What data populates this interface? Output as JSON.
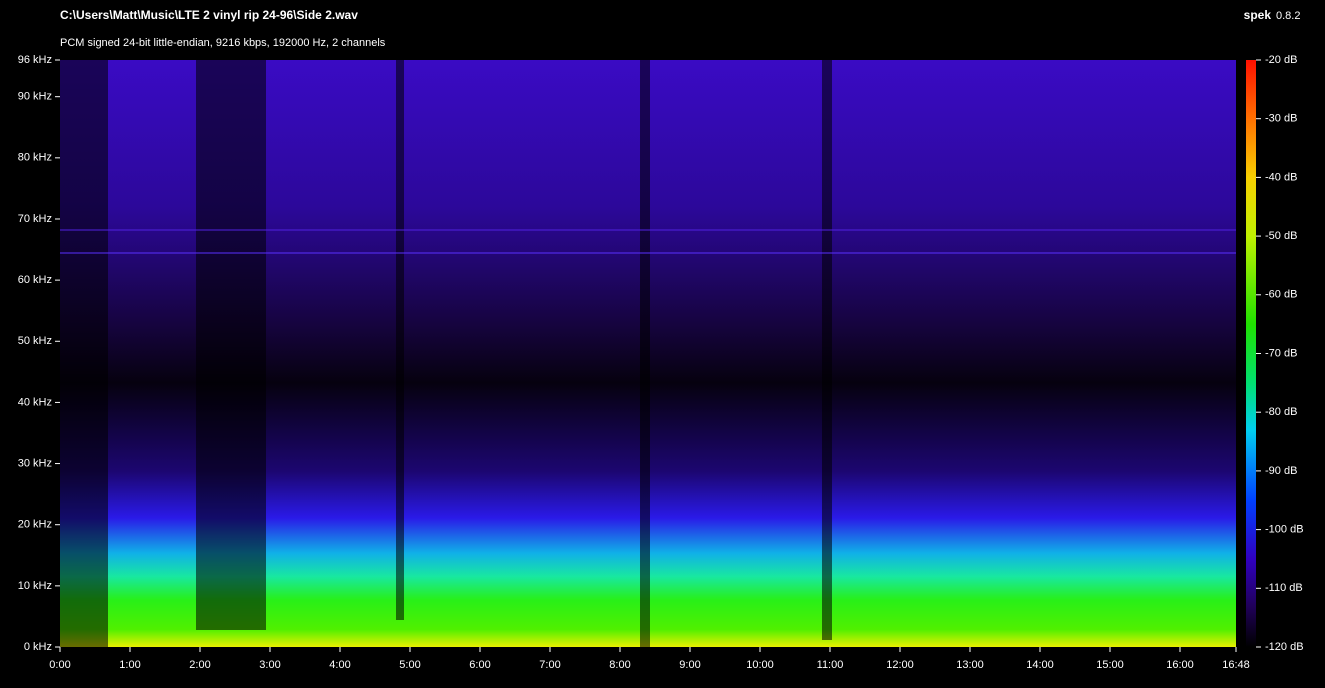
{
  "chart_data": {
    "type": "spectrogram",
    "title": "C:\\Users\\Matt\\Music\\LTE 2 vinyl rip 24-96\\Side 2.wav",
    "app_name": "spek",
    "app_version": "0.8.2",
    "subtitle": "PCM signed 24-bit little-endian, 9216 kbps, 192000 Hz, 2 channels",
    "xlim": [
      0,
      1008
    ],
    "xticks": [
      {
        "value": 0,
        "label": "0:00"
      },
      {
        "value": 60,
        "label": "1:00"
      },
      {
        "value": 120,
        "label": "2:00"
      },
      {
        "value": 180,
        "label": "3:00"
      },
      {
        "value": 240,
        "label": "4:00"
      },
      {
        "value": 300,
        "label": "5:00"
      },
      {
        "value": 360,
        "label": "6:00"
      },
      {
        "value": 420,
        "label": "7:00"
      },
      {
        "value": 480,
        "label": "8:00"
      },
      {
        "value": 540,
        "label": "9:00"
      },
      {
        "value": 600,
        "label": "10:00"
      },
      {
        "value": 660,
        "label": "11:00"
      },
      {
        "value": 720,
        "label": "12:00"
      },
      {
        "value": 780,
        "label": "13:00"
      },
      {
        "value": 840,
        "label": "14:00"
      },
      {
        "value": 900,
        "label": "15:00"
      },
      {
        "value": 960,
        "label": "16:00"
      },
      {
        "value": 1008,
        "label": "16:48"
      }
    ],
    "ylim": [
      0,
      96
    ],
    "yticks": [
      {
        "value": 0,
        "label": "0 kHz"
      },
      {
        "value": 10,
        "label": "10 kHz"
      },
      {
        "value": 20,
        "label": "20 kHz"
      },
      {
        "value": 30,
        "label": "30 kHz"
      },
      {
        "value": 40,
        "label": "40 kHz"
      },
      {
        "value": 50,
        "label": "50 kHz"
      },
      {
        "value": 60,
        "label": "60 kHz"
      },
      {
        "value": 70,
        "label": "70 kHz"
      },
      {
        "value": 80,
        "label": "80 kHz"
      },
      {
        "value": 90,
        "label": "90 kHz"
      },
      {
        "value": 96,
        "label": "96 kHz"
      }
    ],
    "zlim": [
      -120,
      -20
    ],
    "zticks": [
      {
        "value": -20,
        "label": "-20 dB"
      },
      {
        "value": -30,
        "label": "-30 dB"
      },
      {
        "value": -40,
        "label": "-40 dB"
      },
      {
        "value": -50,
        "label": "-50 dB"
      },
      {
        "value": -60,
        "label": "-60 dB"
      },
      {
        "value": -70,
        "label": "-70 dB"
      },
      {
        "value": -80,
        "label": "-80 dB"
      },
      {
        "value": -90,
        "label": "-90 dB"
      },
      {
        "value": -100,
        "label": "-100 dB"
      },
      {
        "value": -110,
        "label": "-110 dB"
      },
      {
        "value": -120,
        "label": "-120 dB"
      }
    ]
  }
}
